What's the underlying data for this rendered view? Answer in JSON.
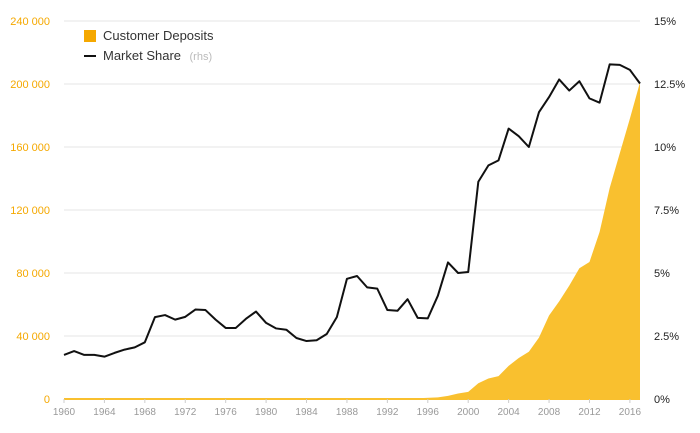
{
  "colors": {
    "deposits": "#f5a800",
    "deposits_fill": "#f9c02f",
    "market_share": "#111111",
    "grid": "#e6e6e6",
    "axis": "#cccccc"
  },
  "legend": {
    "deposits_label": "Customer Deposits",
    "share_label": "Market Share",
    "share_suffix": "(rhs)"
  },
  "chart_data": {
    "type": "area+line",
    "title": "",
    "legend_position": "top-left",
    "xlim": [
      1960,
      2017
    ],
    "x_ticks": [
      1960,
      1964,
      1968,
      1972,
      1976,
      1980,
      1984,
      1988,
      1992,
      1996,
      2000,
      2004,
      2008,
      2012,
      2016
    ],
    "y_left": {
      "ylim": [
        0,
        240000
      ],
      "ticks": [
        0,
        40000,
        80000,
        120000,
        160000,
        200000,
        240000
      ],
      "tick_labels": [
        "0",
        "40 000",
        "80 000",
        "120 000",
        "160 000",
        "200 000",
        "240 000"
      ]
    },
    "y_right": {
      "ylim": [
        0,
        15
      ],
      "ticks": [
        0,
        2.5,
        5,
        7.5,
        10,
        12.5,
        15
      ],
      "tick_labels": [
        "0%",
        "2.5%",
        "5%",
        "7.5%",
        "10%",
        "12.5%",
        "15%"
      ]
    },
    "series": [
      {
        "name": "Customer Deposits",
        "type": "area",
        "axis": "left",
        "x": [
          1960,
          1992,
          1995,
          1997,
          1998,
          1999,
          2000,
          2001,
          2002,
          2003,
          2004,
          2005,
          2006,
          2007,
          2008,
          2009,
          2010,
          2011,
          2012,
          2013,
          2014,
          2015,
          2016,
          2017
        ],
        "values": [
          0,
          0,
          500,
          1000,
          2000,
          3500,
          4500,
          10000,
          13000,
          14500,
          21000,
          26000,
          30000,
          39000,
          53000,
          62000,
          72000,
          83000,
          87000,
          106000,
          134000,
          156000,
          178000,
          201000
        ]
      },
      {
        "name": "Market Share",
        "type": "line",
        "axis": "right",
        "x": [
          1960,
          1961,
          1962,
          1963,
          1964,
          1965,
          1966,
          1967,
          1968,
          1969,
          1970,
          1971,
          1972,
          1973,
          1974,
          1975,
          1976,
          1977,
          1978,
          1979,
          1980,
          1981,
          1982,
          1983,
          1984,
          1985,
          1986,
          1987,
          1988,
          1989,
          1990,
          1991,
          1992,
          1993,
          1994,
          1995,
          1996,
          1997,
          1998,
          1999,
          2000,
          2001,
          2002,
          2003,
          2004,
          2005,
          2006,
          2007,
          2008,
          2009,
          2010,
          2011,
          2012,
          2013,
          2014,
          2015,
          2016,
          2017
        ],
        "values": [
          1.75,
          1.9,
          1.75,
          1.75,
          1.68,
          1.83,
          1.96,
          2.05,
          2.25,
          3.25,
          3.33,
          3.15,
          3.26,
          3.55,
          3.53,
          3.15,
          2.82,
          2.82,
          3.18,
          3.47,
          3.02,
          2.8,
          2.75,
          2.42,
          2.3,
          2.33,
          2.58,
          3.25,
          4.77,
          4.88,
          4.43,
          4.38,
          3.53,
          3.5,
          3.96,
          3.22,
          3.2,
          4.1,
          5.42,
          5.0,
          5.04,
          8.62,
          9.27,
          9.47,
          10.73,
          10.43,
          10.0,
          11.38,
          11.98,
          12.68,
          12.24,
          12.61,
          11.93,
          11.76,
          13.28,
          13.26,
          13.06,
          12.52
        ]
      }
    ]
  }
}
